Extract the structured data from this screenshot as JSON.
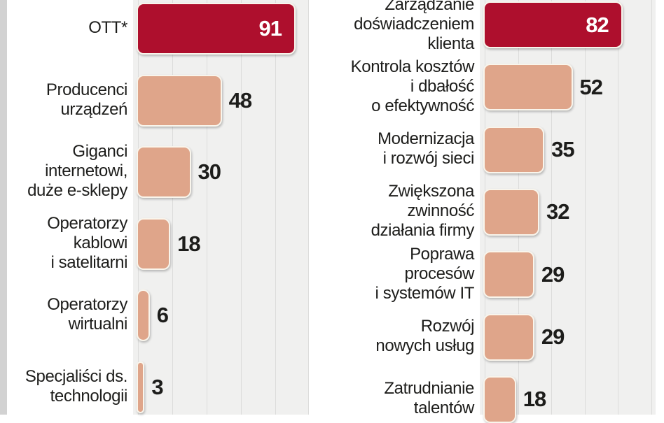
{
  "colors": {
    "highlight_bar": "#ae0f2d",
    "regular_bar": "#dfa58a",
    "bar_border": "#f9f5ec",
    "plot_background": "#f0f0ef",
    "gridline": "#dcdcdb",
    "label_text": "#1d1d1b",
    "value_text": "#1d1d1b",
    "value_text_on_highlight": "#ffffff",
    "page_edge_strip": "#d2d2d2"
  },
  "chart_data": [
    {
      "id": "left-ranking",
      "type": "bar",
      "orientation": "horizontal",
      "grid": true,
      "gridline_step": 20,
      "xlim": [
        0,
        100
      ],
      "legend": "none",
      "highlight_index": 0,
      "categories": [
        "OTT*",
        "Producenci urządzeń",
        "Giganci internetowi, duże e-sklepy",
        "Operatorzy kablowi i satelitarni",
        "Operatorzy wirtualni",
        "Specjaliści ds. technologii"
      ],
      "category_lines": [
        [
          "OTT*"
        ],
        [
          "Producenci",
          "urządzeń"
        ],
        [
          "Giganci",
          "internetowi,",
          "duże e-sklepy"
        ],
        [
          "Operatorzy",
          "kablowi",
          "i satelitarni"
        ],
        [
          "Operatorzy",
          "wirtualni"
        ],
        [
          "Specjaliści ds.",
          "technologii"
        ]
      ],
      "values": [
        91,
        48,
        30,
        18,
        6,
        3
      ]
    },
    {
      "id": "right-ranking",
      "type": "bar",
      "orientation": "horizontal",
      "grid": true,
      "gridline_step": 20,
      "xlim": [
        0,
        100
      ],
      "legend": "none",
      "highlight_index": 0,
      "categories": [
        "Zarządzanie doświadczeniem klienta",
        "Kontrola kosztów i dbałość o efektywność",
        "Modernizacja i rozwój sieci",
        "Zwiększona zwinność działania firmy",
        "Poprawa procesów i systemów IT",
        "Rozwój nowych usług",
        "Zatrudnianie talentów"
      ],
      "category_lines": [
        [
          "Zarządzanie",
          "doświadczeniem",
          "klienta"
        ],
        [
          "Kontrola kosztów",
          "i dbałość",
          "o efektywność"
        ],
        [
          "Modernizacja",
          "i rozwój sieci"
        ],
        [
          "Zwiększona",
          "zwinność",
          "działania firmy"
        ],
        [
          "Poprawa",
          "procesów",
          "i systemów IT"
        ],
        [
          "Rozwój",
          "nowych usług"
        ],
        [
          "Zatrudnianie",
          "talentów"
        ]
      ],
      "values": [
        82,
        52,
        35,
        32,
        29,
        29,
        18
      ]
    }
  ]
}
